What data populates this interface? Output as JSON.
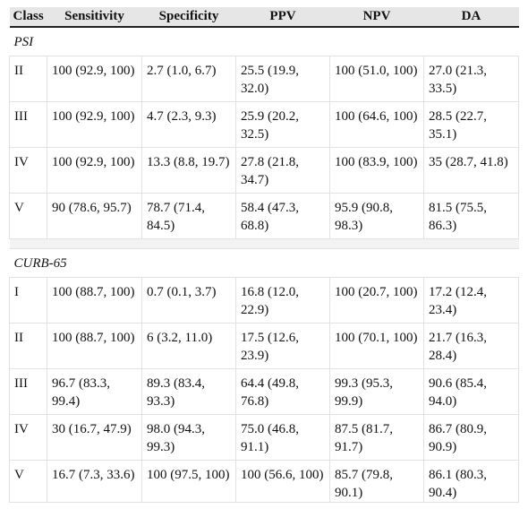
{
  "table": {
    "header": [
      "Class",
      "Sensitivity",
      "Specificity",
      "PPV",
      "NPV",
      "DA"
    ],
    "sections": [
      {
        "title": "PSI",
        "rows": [
          [
            "II",
            "100 (92.9, 100)",
            "2.7 (1.0, 6.7)",
            "25.5 (19.9, 32.0)",
            "100 (51.0, 100)",
            "27.0 (21.3, 33.5)"
          ],
          [
            "III",
            "100 (92.9, 100)",
            "4.7 (2.3, 9.3)",
            "25.9 (20.2, 32.5)",
            "100 (64.6, 100)",
            "28.5 (22.7, 35.1)"
          ],
          [
            "IV",
            "100 (92.9, 100)",
            "13.3 (8.8, 19.7)",
            "27.8 (21.8, 34.7)",
            "100 (83.9, 100)",
            "35 (28.7, 41.8)"
          ],
          [
            "V",
            "90 (78.6, 95.7)",
            "78.7 (71.4, 84.5)",
            "58.4 (47.3, 68.8)",
            "95.9 (90.8, 98.3)",
            "81.5 (75.5, 86.3)"
          ]
        ]
      },
      {
        "title": "CURB-65",
        "rows": [
          [
            "I",
            "100 (88.7, 100)",
            "0.7 (0.1, 3.7)",
            "16.8 (12.0, 22.9)",
            "100 (20.7, 100)",
            "17.2 (12.4, 23.4)"
          ],
          [
            "II",
            "100 (88.7, 100)",
            "6 (3.2, 11.0)",
            "17.5 (12.6, 23.9)",
            "100 (70.1, 100)",
            "21.7 (16.3, 28.4)"
          ],
          [
            "III",
            "96.7 (83.3, 99.4)",
            "89.3 (83.4, 93.3)",
            "64.4 (49.8, 76.8)",
            "99.3 (95.3, 99.9)",
            "90.6 (85.4, 94.0)"
          ],
          [
            "IV",
            "30 (16.7, 47.9)",
            "98.0 (94.3, 99.3)",
            "75.0 (46.8, 91.1)",
            "87.5 (81.7, 91.7)",
            "86.7 (80.9, 90.9)"
          ],
          [
            "V",
            "16.7 (7.3, 33.6)",
            "100 (97.5, 100)",
            "100 (56.6, 100)",
            "85.7 (79.8, 90.1)",
            "86.1 (80.3, 90.4)"
          ]
        ]
      }
    ]
  }
}
